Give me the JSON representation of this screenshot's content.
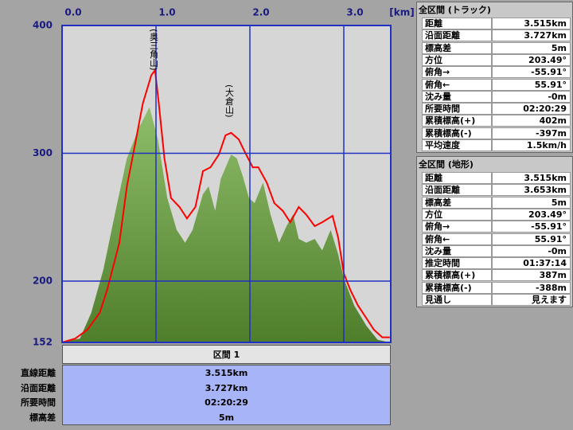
{
  "chart_data": {
    "type": "area",
    "xlabel": "[km]",
    "xlim": [
      0,
      3.5
    ],
    "ylim": [
      152,
      400
    ],
    "xticks": [
      {
        "value": 0,
        "label": "0.0"
      },
      {
        "value": 1,
        "label": "1.0"
      },
      {
        "value": 2,
        "label": "2.0"
      },
      {
        "value": 3,
        "label": "3.0"
      }
    ],
    "yticks": [
      152,
      200,
      300,
      400
    ],
    "grid": true,
    "series": [
      {
        "style": "area",
        "color": "#6aa83a",
        "x": [
          0,
          0.19,
          0.31,
          0.44,
          0.57,
          0.69,
          0.82,
          0.93,
          1.02,
          1.12,
          1.22,
          1.31,
          1.39,
          1.5,
          1.56,
          1.63,
          1.69,
          1.8,
          1.86,
          1.92,
          1.99,
          2.05,
          2.14,
          2.22,
          2.31,
          2.39,
          2.46,
          2.52,
          2.6,
          2.69,
          2.77,
          2.86,
          2.94,
          3.0,
          3.11,
          3.24,
          3.36,
          3.49
        ],
        "values": [
          152,
          155,
          175,
          209,
          255,
          296,
          320,
          336,
          311,
          265,
          240,
          230,
          240,
          268,
          274,
          255,
          280,
          299,
          296,
          283,
          265,
          261,
          277,
          252,
          230,
          243,
          252,
          233,
          230,
          233,
          224,
          240,
          221,
          202,
          181,
          165,
          154,
          152
        ]
      },
      {
        "style": "line",
        "color": "#ff0000",
        "x": [
          0,
          0.14,
          0.27,
          0.4,
          0.48,
          0.61,
          0.69,
          0.78,
          0.86,
          0.95,
          0.99,
          1.03,
          1.09,
          1.16,
          1.25,
          1.33,
          1.42,
          1.5,
          1.58,
          1.67,
          1.74,
          1.8,
          1.88,
          1.94,
          2.03,
          2.09,
          2.18,
          2.26,
          2.35,
          2.43,
          2.52,
          2.6,
          2.69,
          2.77,
          2.88,
          2.94,
          3.0,
          3.07,
          3.15,
          3.24,
          3.32,
          3.41,
          3.49
        ],
        "values": [
          152,
          155,
          162,
          175,
          193,
          230,
          274,
          308,
          339,
          361,
          365,
          339,
          296,
          265,
          258,
          249,
          258,
          286,
          289,
          299,
          314,
          316,
          311,
          302,
          289,
          289,
          277,
          261,
          255,
          246,
          258,
          252,
          243,
          246,
          251,
          234,
          206,
          193,
          181,
          171,
          162,
          156,
          156
        ]
      }
    ],
    "annotations": [
      "(奥三角山)",
      "(大倉山)"
    ]
  },
  "section_table": {
    "header": "区間 1",
    "rows": [
      [
        "直線距離",
        "3.515km"
      ],
      [
        "沿面距離",
        "3.727km"
      ],
      [
        "所要時間",
        "02:20:29"
      ],
      [
        "標高差",
        "5m"
      ]
    ]
  },
  "track_panel": {
    "title": "全区間 (トラック)",
    "rows": [
      [
        "距離",
        "3.515km"
      ],
      [
        "沿面距離",
        "3.727km"
      ],
      [
        "標高差",
        "5m"
      ],
      [
        "方位",
        "203.49°"
      ],
      [
        "俯角→",
        "-55.91°"
      ],
      [
        "俯角←",
        "55.91°"
      ],
      [
        "沈み量",
        "-0m"
      ],
      [
        "所要時間",
        "02:20:29"
      ],
      [
        "累積標高(+)",
        "402m"
      ],
      [
        "累積標高(-)",
        "-397m"
      ],
      [
        "平均速度",
        "1.5km/h"
      ]
    ]
  },
  "terrain_panel": {
    "title": "全区間 (地形)",
    "rows": [
      [
        "距離",
        "3.515km"
      ],
      [
        "沿面距離",
        "3.653km"
      ],
      [
        "標高差",
        "5m"
      ],
      [
        "方位",
        "203.49°"
      ],
      [
        "俯角→",
        "-55.91°"
      ],
      [
        "俯角←",
        "55.91°"
      ],
      [
        "沈み量",
        "-0m"
      ],
      [
        "推定時間",
        "01:37:14"
      ],
      [
        "累積標高(+)",
        "387m"
      ],
      [
        "累積標高(-)",
        "-388m"
      ],
      [
        "見通し",
        "見えます"
      ]
    ]
  }
}
